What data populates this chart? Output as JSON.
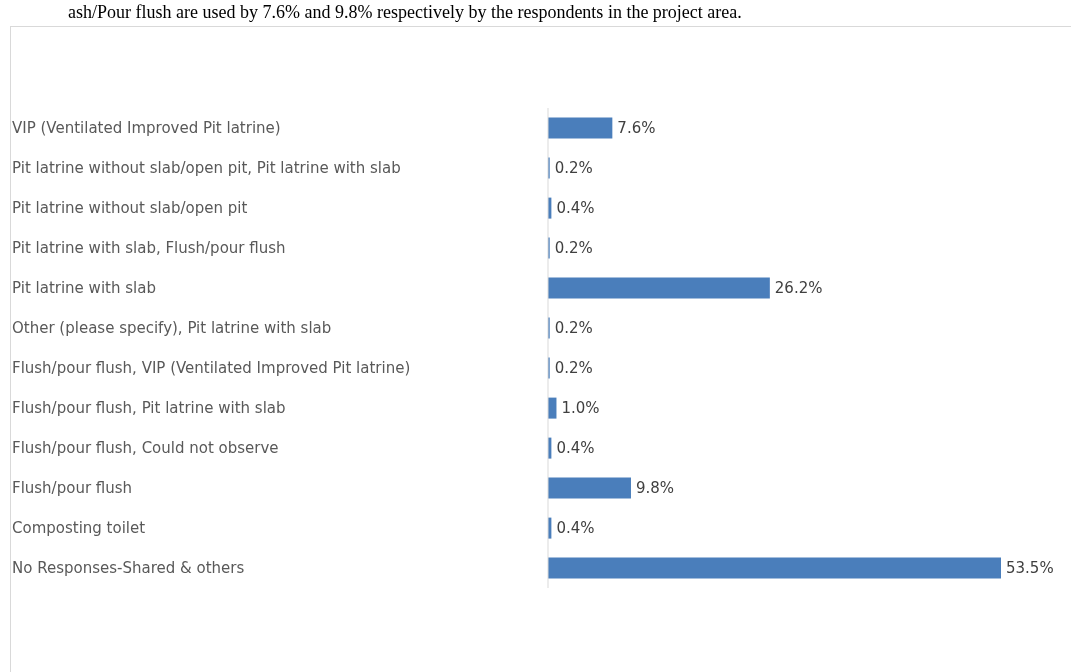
{
  "chart_data": {
    "type": "bar",
    "orientation": "horizontal",
    "annotations": [
      "ash/Pour flush are used by 7.6% and 9.8% respectively by the respondents in the project area."
    ],
    "categories": [
      "VIP (Ventilated Improved Pit latrine)",
      "Pit latrine without slab/open pit, Pit latrine with slab",
      "Pit latrine without slab/open pit",
      "Pit latrine with slab, Flush/pour flush",
      "Pit latrine with slab",
      "Other (please specify), Pit latrine with slab",
      "Flush/pour flush, VIP (Ventilated Improved Pit latrine)",
      "Flush/pour flush, Pit latrine with slab",
      "Flush/pour flush, Could not observe",
      "Flush/pour flush",
      "Composting toilet",
      "No Responses-Shared & others"
    ],
    "values": [
      7.6,
      0.2,
      0.4,
      0.2,
      26.2,
      0.2,
      0.2,
      1.0,
      0.4,
      9.8,
      0.4,
      53.5
    ],
    "value_labels": [
      "7.6%",
      "0.2%",
      "0.4%",
      "0.2%",
      "26.2%",
      "0.2%",
      "0.2%",
      "1.0%",
      "0.4%",
      "9.8%",
      "0.4%",
      "53.5%"
    ],
    "color": "#4a7ebb"
  }
}
